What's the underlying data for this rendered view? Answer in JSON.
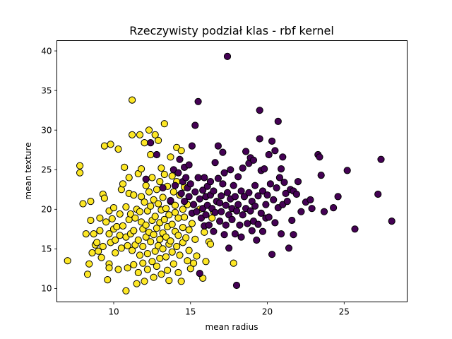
{
  "chart_data": {
    "type": "scatter",
    "title": "Rzeczywisty podział klas - rbf kernel",
    "xlabel": "mean radius",
    "ylabel": "mean texture",
    "xlim": [
      6.3,
      29.1
    ],
    "ylim": [
      8.3,
      41.3
    ],
    "xticks": [
      10,
      15,
      20,
      25
    ],
    "yticks": [
      10,
      15,
      20,
      25,
      30,
      35,
      40
    ],
    "grid": false,
    "series": [
      {
        "color": "#fde725",
        "points": [
          [
            7.0,
            13.5
          ],
          [
            7.8,
            25.5
          ],
          [
            7.8,
            24.6
          ],
          [
            8.0,
            20.7
          ],
          [
            8.2,
            16.9
          ],
          [
            8.3,
            11.8
          ],
          [
            8.4,
            13.1
          ],
          [
            8.5,
            21.0
          ],
          [
            8.5,
            18.6
          ],
          [
            8.6,
            14.5
          ],
          [
            8.7,
            16.9
          ],
          [
            8.8,
            15.5
          ],
          [
            8.9,
            15.8
          ],
          [
            9.0,
            14.7
          ],
          [
            9.1,
            18.9
          ],
          [
            9.1,
            17.3
          ],
          [
            9.2,
            13.9
          ],
          [
            9.3,
            21.9
          ],
          [
            9.3,
            15.3
          ],
          [
            9.4,
            21.4
          ],
          [
            9.4,
            28.0
          ],
          [
            9.5,
            18.4
          ],
          [
            9.6,
            11.1
          ],
          [
            9.7,
            13.1
          ],
          [
            9.7,
            12.6
          ],
          [
            9.7,
            16.9
          ],
          [
            9.7,
            19.8
          ],
          [
            9.8,
            28.2
          ],
          [
            9.8,
            15.8
          ],
          [
            9.9,
            18.8
          ],
          [
            10.0,
            20.2
          ],
          [
            10.0,
            17.5
          ],
          [
            10.1,
            16.1
          ],
          [
            10.1,
            14.5
          ],
          [
            10.2,
            17.8
          ],
          [
            10.3,
            12.4
          ],
          [
            10.3,
            27.6
          ],
          [
            10.4,
            16.7
          ],
          [
            10.4,
            19.4
          ],
          [
            10.5,
            22.5
          ],
          [
            10.5,
            15.1
          ],
          [
            10.6,
            23.2
          ],
          [
            10.6,
            17.9
          ],
          [
            10.7,
            25.3
          ],
          [
            10.8,
            9.7
          ],
          [
            10.8,
            16.5
          ],
          [
            10.8,
            20.3
          ],
          [
            10.9,
            15.4
          ],
          [
            10.9,
            12.6
          ],
          [
            11.0,
            18.7
          ],
          [
            11.0,
            24.0
          ],
          [
            11.0,
            22.0
          ],
          [
            11.1,
            19.4
          ],
          [
            11.1,
            16.9
          ],
          [
            11.2,
            14.8
          ],
          [
            11.2,
            33.8
          ],
          [
            11.2,
            29.4
          ],
          [
            11.3,
            21.8
          ],
          [
            11.3,
            17.3
          ],
          [
            11.3,
            13.0
          ],
          [
            11.4,
            18.9
          ],
          [
            11.4,
            15.5
          ],
          [
            11.5,
            20.0
          ],
          [
            11.5,
            10.6
          ],
          [
            11.6,
            24.5
          ],
          [
            11.6,
            16.1
          ],
          [
            11.6,
            12.0
          ],
          [
            11.7,
            29.4
          ],
          [
            11.7,
            14.2
          ],
          [
            11.7,
            19.7
          ],
          [
            11.8,
            18.4
          ],
          [
            11.8,
            21.6
          ],
          [
            11.8,
            25.1
          ],
          [
            11.9,
            17.5
          ],
          [
            11.9,
            15.3
          ],
          [
            11.9,
            13.2
          ],
          [
            12.0,
            10.9
          ],
          [
            12.0,
            20.9
          ],
          [
            12.0,
            28.4
          ],
          [
            12.1,
            16.5
          ],
          [
            12.1,
            23.0
          ],
          [
            12.1,
            18.0
          ],
          [
            12.2,
            14.4
          ],
          [
            12.2,
            19.8
          ],
          [
            12.2,
            12.4
          ],
          [
            12.3,
            22.2
          ],
          [
            12.3,
            30.0
          ],
          [
            12.3,
            17.1
          ],
          [
            12.4,
            15.9
          ],
          [
            12.4,
            26.9
          ],
          [
            12.4,
            20.4
          ],
          [
            12.5,
            13.4
          ],
          [
            12.5,
            18.6
          ],
          [
            12.5,
            24.0
          ],
          [
            12.6,
            16.8
          ],
          [
            12.6,
            21.2
          ],
          [
            12.6,
            11.4
          ],
          [
            12.7,
            29.4
          ],
          [
            12.7,
            14.7
          ],
          [
            12.7,
            19.1
          ],
          [
            12.8,
            22.5
          ],
          [
            12.8,
            17.6
          ],
          [
            12.8,
            12.8
          ],
          [
            12.9,
            15.4
          ],
          [
            12.9,
            20.7
          ],
          [
            12.9,
            28.7
          ],
          [
            13.0,
            16.2
          ],
          [
            13.0,
            18.3
          ],
          [
            13.0,
            23.5
          ],
          [
            13.0,
            13.8
          ],
          [
            13.1,
            25.2
          ],
          [
            13.1,
            19.9
          ],
          [
            13.1,
            11.8
          ],
          [
            13.2,
            17.0
          ],
          [
            13.2,
            21.5
          ],
          [
            13.2,
            15.0
          ],
          [
            13.3,
            30.8
          ],
          [
            13.3,
            24.4
          ],
          [
            13.3,
            18.7
          ],
          [
            13.4,
            14.0
          ],
          [
            13.4,
            16.5
          ],
          [
            13.4,
            20.1
          ],
          [
            13.5,
            22.9
          ],
          [
            13.5,
            12.3
          ],
          [
            13.5,
            17.8
          ],
          [
            13.6,
            15.6
          ],
          [
            13.6,
            19.3
          ],
          [
            13.6,
            11.0
          ],
          [
            13.7,
            21.0
          ],
          [
            13.7,
            26.6
          ],
          [
            13.7,
            16.0
          ],
          [
            13.8,
            24.2
          ],
          [
            13.8,
            14.6
          ],
          [
            13.8,
            18.1
          ],
          [
            13.9,
            22.2
          ],
          [
            13.9,
            13.1
          ],
          [
            14.0,
            17.2
          ],
          [
            14.0,
            19.6
          ],
          [
            14.0,
            20.5
          ],
          [
            14.1,
            27.8
          ],
          [
            14.1,
            15.3
          ],
          [
            14.1,
            23.5
          ],
          [
            14.2,
            16.7
          ],
          [
            14.2,
            12.0
          ],
          [
            14.2,
            18.9
          ],
          [
            14.3,
            21.8
          ],
          [
            14.3,
            14.2
          ],
          [
            14.4,
            27.4
          ],
          [
            14.4,
            10.9
          ],
          [
            14.5,
            17.7
          ],
          [
            14.5,
            20.0
          ],
          [
            14.5,
            15.8
          ],
          [
            14.6,
            22.8
          ],
          [
            14.6,
            19.0
          ],
          [
            14.7,
            16.4
          ],
          [
            14.8,
            13.5
          ],
          [
            14.8,
            20.6
          ],
          [
            14.9,
            17.4
          ],
          [
            14.9,
            14.8
          ],
          [
            15.0,
            12.5
          ],
          [
            15.1,
            18.2
          ],
          [
            15.2,
            13.2
          ],
          [
            15.3,
            16.2
          ],
          [
            15.4,
            14.1
          ],
          [
            15.6,
            20.0
          ],
          [
            15.8,
            11.3
          ],
          [
            15.9,
            17.1
          ],
          [
            16.0,
            13.4
          ],
          [
            16.2,
            15.9
          ],
          [
            16.3,
            15.6
          ],
          [
            16.4,
            18.9
          ],
          [
            16.5,
            19.7
          ],
          [
            17.8,
            13.2
          ]
        ]
      },
      {
        "color": "#440154",
        "points": [
          [
            12.1,
            23.8
          ],
          [
            12.4,
            28.4
          ],
          [
            12.8,
            26.9
          ],
          [
            13.2,
            22.7
          ],
          [
            13.7,
            21.1
          ],
          [
            13.9,
            25.0
          ],
          [
            14.0,
            23.0
          ],
          [
            14.2,
            24.6
          ],
          [
            14.3,
            26.3
          ],
          [
            14.4,
            22.0
          ],
          [
            14.5,
            23.5
          ],
          [
            14.6,
            25.3
          ],
          [
            14.6,
            21.0
          ],
          [
            14.7,
            24.0
          ],
          [
            14.8,
            22.7
          ],
          [
            14.9,
            25.6
          ],
          [
            14.9,
            21.6
          ],
          [
            15.0,
            23.2
          ],
          [
            15.1,
            28.0
          ],
          [
            15.1,
            19.5
          ],
          [
            15.2,
            20.6
          ],
          [
            15.3,
            30.6
          ],
          [
            15.3,
            22.2
          ],
          [
            15.4,
            19.7
          ],
          [
            15.5,
            33.6
          ],
          [
            15.5,
            24.0
          ],
          [
            15.6,
            21.3
          ],
          [
            15.6,
            11.9
          ],
          [
            15.7,
            18.9
          ],
          [
            15.8,
            22.4
          ],
          [
            15.8,
            20.1
          ],
          [
            15.9,
            24.0
          ],
          [
            15.9,
            17.9
          ],
          [
            16.0,
            21.6
          ],
          [
            16.0,
            19.3
          ],
          [
            16.1,
            22.9
          ],
          [
            16.1,
            20.5
          ],
          [
            16.2,
            18.0
          ],
          [
            16.3,
            23.5
          ],
          [
            16.3,
            21.8
          ],
          [
            16.4,
            20.1
          ],
          [
            16.5,
            22.3
          ],
          [
            16.5,
            17.2
          ],
          [
            16.6,
            25.9
          ],
          [
            16.6,
            19.6
          ],
          [
            16.7,
            21.0
          ],
          [
            16.8,
            28.0
          ],
          [
            16.8,
            23.9
          ],
          [
            16.9,
            20.8
          ],
          [
            16.9,
            18.5
          ],
          [
            17.0,
            21.7
          ],
          [
            17.0,
            19.7
          ],
          [
            17.1,
            27.2
          ],
          [
            17.1,
            23.2
          ],
          [
            17.2,
            24.6
          ],
          [
            17.2,
            16.8
          ],
          [
            17.3,
            20.5
          ],
          [
            17.3,
            18.0
          ],
          [
            17.4,
            39.3
          ],
          [
            17.4,
            22.1
          ],
          [
            17.5,
            19.3
          ],
          [
            17.5,
            15.1
          ],
          [
            17.6,
            21.3
          ],
          [
            17.6,
            25.0
          ],
          [
            17.7,
            18.7
          ],
          [
            17.7,
            20.1
          ],
          [
            17.8,
            23.0
          ],
          [
            17.9,
            16.9
          ],
          [
            17.9,
            21.6
          ],
          [
            18.0,
            10.4
          ],
          [
            18.0,
            19.8
          ],
          [
            18.1,
            24.1
          ],
          [
            18.1,
            20.6
          ],
          [
            18.2,
            18.0
          ],
          [
            18.3,
            22.3
          ],
          [
            18.3,
            16.5
          ],
          [
            18.4,
            25.2
          ],
          [
            18.4,
            19.3
          ],
          [
            18.5,
            21.6
          ],
          [
            18.6,
            27.3
          ],
          [
            18.6,
            20.1
          ],
          [
            18.7,
            18.2
          ],
          [
            18.8,
            25.8
          ],
          [
            18.8,
            22.1
          ],
          [
            18.9,
            26.5
          ],
          [
            18.9,
            19.8
          ],
          [
            19.0,
            17.3
          ],
          [
            19.0,
            21.0
          ],
          [
            19.1,
            26.2
          ],
          [
            19.1,
            18.5
          ],
          [
            19.2,
            23.0
          ],
          [
            19.2,
            20.4
          ],
          [
            19.3,
            16.1
          ],
          [
            19.4,
            21.7
          ],
          [
            19.4,
            18.1
          ],
          [
            19.5,
            32.5
          ],
          [
            19.5,
            28.9
          ],
          [
            19.6,
            24.9
          ],
          [
            19.6,
            19.5
          ],
          [
            19.7,
            22.3
          ],
          [
            19.7,
            17.2
          ],
          [
            19.8,
            25.1
          ],
          [
            19.9,
            20.6
          ],
          [
            19.9,
            18.9
          ],
          [
            20.0,
            21.8
          ],
          [
            20.1,
            26.9
          ],
          [
            20.1,
            19.0
          ],
          [
            20.2,
            23.2
          ],
          [
            20.3,
            14.3
          ],
          [
            20.3,
            28.6
          ],
          [
            20.4,
            21.2
          ],
          [
            20.5,
            27.4
          ],
          [
            20.5,
            18.3
          ],
          [
            20.6,
            22.7
          ],
          [
            20.7,
            31.1
          ],
          [
            20.7,
            20.2
          ],
          [
            20.8,
            24.0
          ],
          [
            20.9,
            25.1
          ],
          [
            20.9,
            16.9
          ],
          [
            21.0,
            26.6
          ],
          [
            21.0,
            20.6
          ],
          [
            21.1,
            23.4
          ],
          [
            21.2,
            22.0
          ],
          [
            21.3,
            21.0
          ],
          [
            21.4,
            15.1
          ],
          [
            21.5,
            22.5
          ],
          [
            21.6,
            18.6
          ],
          [
            21.7,
            22.3
          ],
          [
            21.7,
            16.8
          ],
          [
            21.9,
            21.9
          ],
          [
            22.0,
            23.5
          ],
          [
            22.2,
            19.7
          ],
          [
            22.5,
            20.9
          ],
          [
            22.8,
            21.2
          ],
          [
            22.9,
            20.1
          ],
          [
            23.3,
            26.9
          ],
          [
            23.4,
            26.6
          ],
          [
            23.5,
            24.3
          ],
          [
            23.7,
            19.7
          ],
          [
            24.3,
            20.2
          ],
          [
            24.6,
            21.6
          ],
          [
            25.2,
            24.9
          ],
          [
            25.7,
            17.5
          ],
          [
            27.2,
            21.9
          ],
          [
            27.4,
            26.3
          ],
          [
            28.1,
            18.5
          ]
        ]
      }
    ]
  }
}
